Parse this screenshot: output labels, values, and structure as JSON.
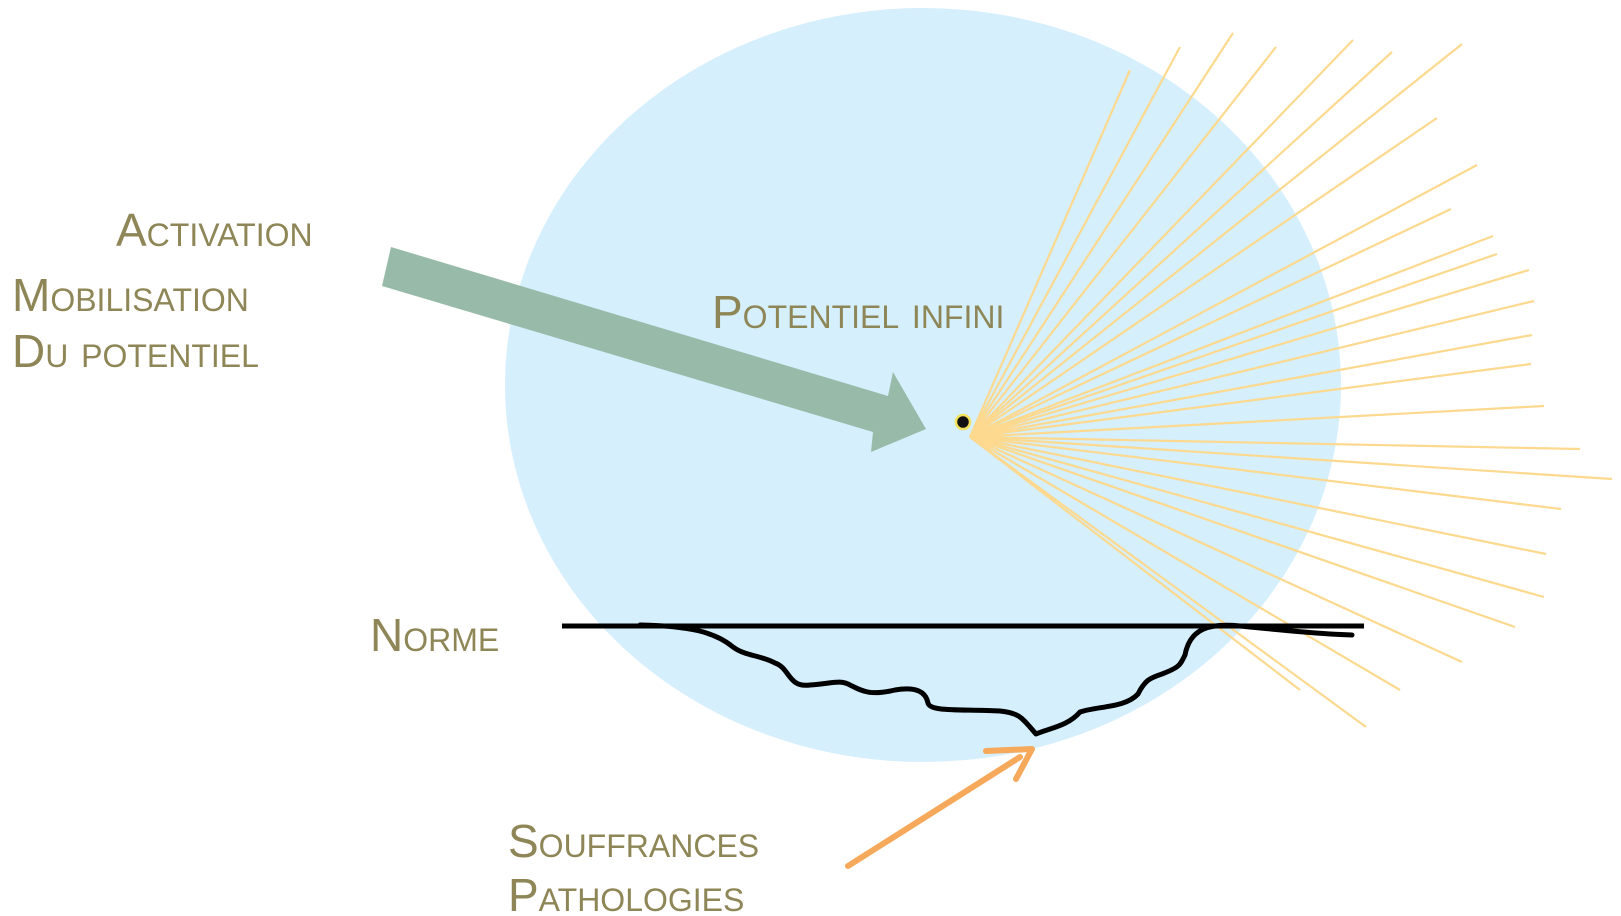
{
  "labels": {
    "activation": "Activation",
    "mobilisation_line1": "Mobilisation",
    "mobilisation_line2": "Du potentiel",
    "potentiel_infini": "Potentiel infini",
    "norme": "Norme",
    "souffrances": "Souffrances",
    "pathologies": "Pathologies"
  },
  "colors": {
    "label_text": "#8e8656",
    "circle_fill": "#d5effc",
    "rays": "#fcd98e",
    "activation_arrow": "#98bba9",
    "souffrance_arrow": "#f6a95a",
    "norme_line": "#000000"
  }
}
